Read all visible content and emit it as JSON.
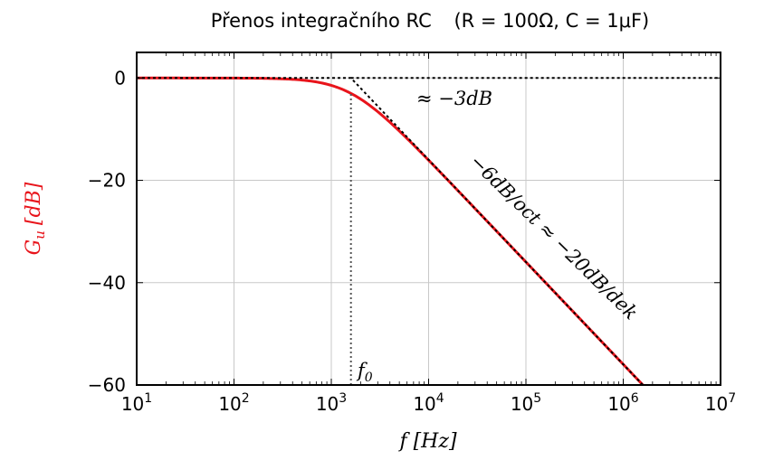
{
  "chart_data": {
    "type": "line",
    "title_prefix": "Přenos integračního RC",
    "title_params": "(R = 100Ω, C = 1μF)",
    "xlabel": "f [Hz]",
    "ylabel": "G",
    "ylabel_sub": "u",
    "ylabel_unit": "[dB]",
    "x_scale": "log",
    "xlim": [
      10,
      10000000
    ],
    "ylim": [
      -60,
      5
    ],
    "x_ticks": [
      {
        "value": 10,
        "base": "10",
        "exp": "1"
      },
      {
        "value": 100,
        "base": "10",
        "exp": "2"
      },
      {
        "value": 1000,
        "base": "10",
        "exp": "3"
      },
      {
        "value": 10000,
        "base": "10",
        "exp": "4"
      },
      {
        "value": 100000,
        "base": "10",
        "exp": "5"
      },
      {
        "value": 1000000,
        "base": "10",
        "exp": "6"
      },
      {
        "value": 10000000,
        "base": "10",
        "exp": "7"
      }
    ],
    "y_ticks": [
      {
        "value": 0,
        "label": "0"
      },
      {
        "value": -20,
        "label": "−20"
      },
      {
        "value": -40,
        "label": "−40"
      },
      {
        "value": -60,
        "label": "−60"
      }
    ],
    "grid": true,
    "cutoff_frequency": 1591.5,
    "series": [
      {
        "kind": "transfer",
        "color": "#e8141b"
      },
      {
        "kind": "asymptote",
        "color": "#000000",
        "style": "dotted",
        "points": [
          [
            10,
            0
          ],
          [
            1591.5,
            0
          ],
          [
            1591500,
            -60
          ]
        ]
      },
      {
        "kind": "zero-line",
        "color": "#000000",
        "style": "dotted",
        "points": [
          [
            1591.5,
            0
          ],
          [
            10000000,
            0
          ]
        ]
      },
      {
        "kind": "cutoff-line",
        "color": "#555555",
        "style": "dotted",
        "points": [
          [
            1591.5,
            -60
          ],
          [
            1591.5,
            -3
          ]
        ]
      }
    ],
    "annotations": {
      "minus3db": "≈ −3dB",
      "slope": "−6dB/oct ≈ −20dB/dek",
      "f0_base": "f",
      "f0_sub": "0"
    },
    "colors": {
      "curve": "#e8141b",
      "ylabel": "#e8141b",
      "grid": "#c8c8c8"
    }
  }
}
